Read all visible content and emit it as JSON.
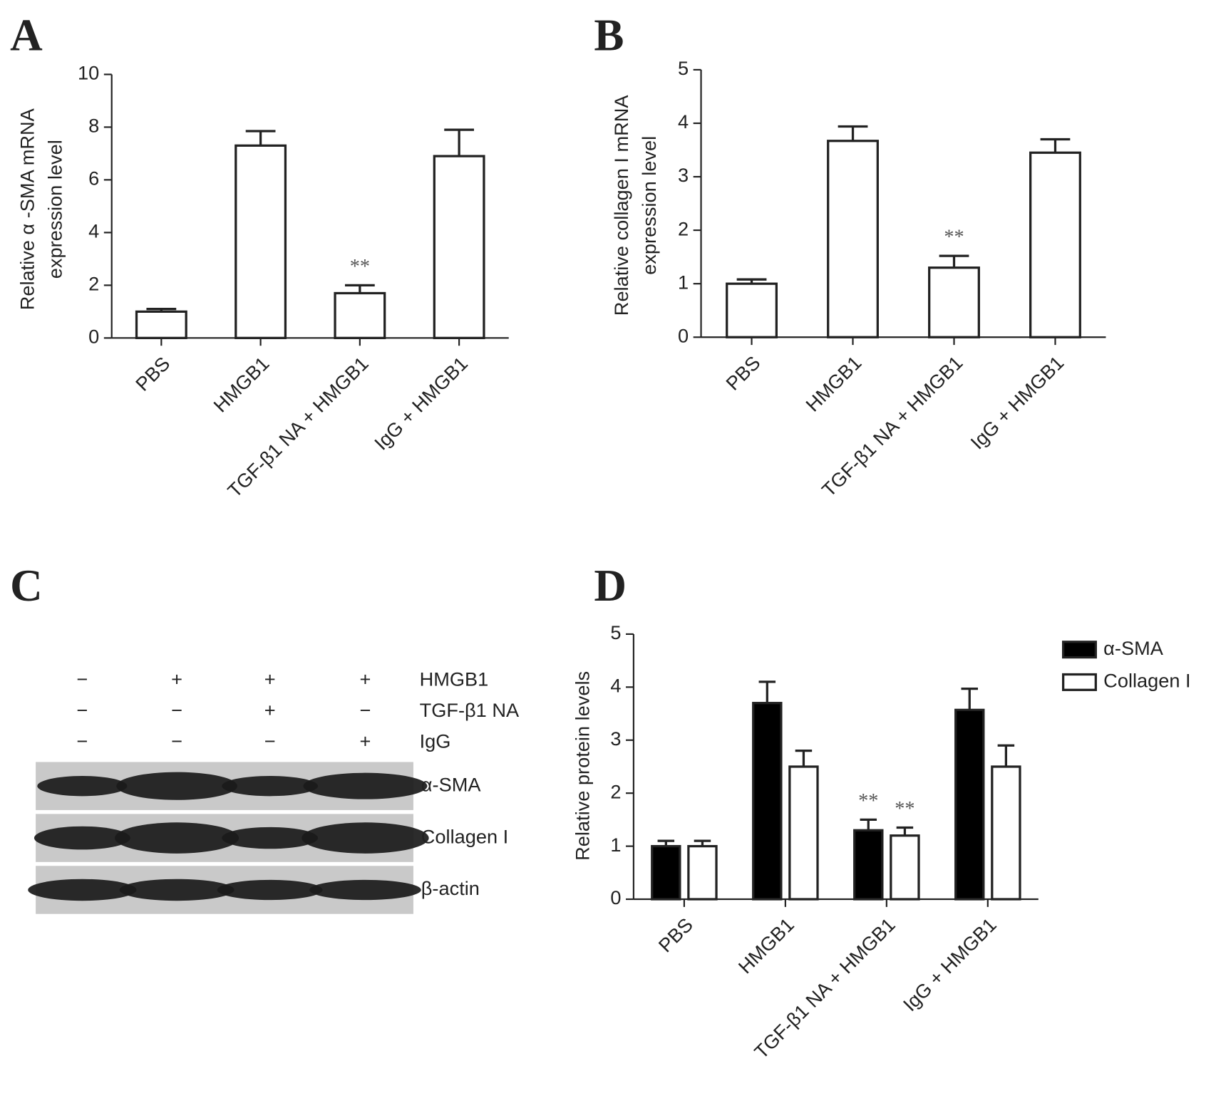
{
  "panels": [
    "A",
    "B",
    "C",
    "D"
  ],
  "chart_data": [
    {
      "type": "bar",
      "y_label": [
        "Relative α -SMA mRNA",
        "expression level"
      ],
      "categories": [
        "PBS",
        "HMGB1",
        "TGF-β1 NA + HMGB1",
        "IgG + HMGB1"
      ],
      "values": [
        1.0,
        7.3,
        1.7,
        6.9
      ],
      "errors": [
        0.1,
        0.55,
        0.3,
        1.0
      ],
      "significance": [
        null,
        null,
        "**",
        null
      ],
      "color": "#ffffff",
      "ylim": [
        0,
        10
      ],
      "yticks": [
        0,
        2,
        4,
        6,
        8,
        10
      ]
    },
    {
      "type": "bar",
      "y_label": [
        "Relative collagen I mRNA",
        "expression level"
      ],
      "categories": [
        "PBS",
        "HMGB1",
        "TGF-β1 NA + HMGB1",
        "IgG + HMGB1"
      ],
      "values": [
        1.0,
        3.67,
        1.3,
        3.45
      ],
      "errors": [
        0.08,
        0.27,
        0.22,
        0.25
      ],
      "significance": [
        null,
        null,
        "**",
        null
      ],
      "color": "#ffffff",
      "ylim": [
        0,
        5
      ],
      "yticks": [
        0,
        1,
        2,
        3,
        4,
        5
      ]
    },
    {
      "type": "bar",
      "y_label": [
        "Relative protein levels"
      ],
      "categories": [
        "PBS",
        "HMGB1",
        "TGF-β1 NA + HMGB1",
        "IgG + HMGB1"
      ],
      "series": [
        {
          "name": "α-SMA",
          "color": "#000000",
          "values": [
            1.0,
            3.7,
            1.3,
            3.57
          ],
          "errors": [
            0.1,
            0.4,
            0.2,
            0.4
          ],
          "significance": [
            null,
            null,
            "**",
            null
          ]
        },
        {
          "name": "Collagen I",
          "color": "#ffffff",
          "values": [
            1.0,
            2.5,
            1.2,
            2.5
          ],
          "errors": [
            0.1,
            0.3,
            0.15,
            0.4
          ],
          "significance": [
            null,
            null,
            "**",
            null
          ]
        }
      ],
      "legend": "top-right",
      "ylim": [
        0,
        5
      ],
      "yticks": [
        0,
        1,
        2,
        3,
        4,
        5
      ]
    }
  ],
  "blot": {
    "treatments": [
      {
        "label": "HMGB1",
        "signs": [
          "−",
          "+",
          "+",
          "+"
        ]
      },
      {
        "label": "TGF-β1 NA",
        "signs": [
          "−",
          "−",
          "+",
          "−"
        ]
      },
      {
        "label": "IgG",
        "signs": [
          "−",
          "−",
          "−",
          "+"
        ]
      }
    ],
    "bands": [
      "α-SMA",
      "Collagen I",
      "β-actin"
    ]
  }
}
